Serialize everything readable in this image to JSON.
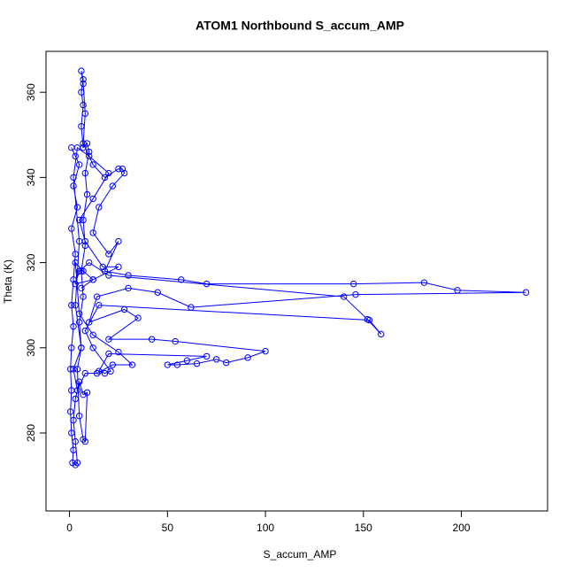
{
  "chart_data": {
    "type": "scatter",
    "title": "ATOM1 Northbound S_accum_AMP",
    "x_label": "S_accum_AMP",
    "y_label": "Theta (K)",
    "color": "#0000ff",
    "lines": true,
    "xlim": [
      -12,
      244
    ],
    "ylim": [
      261.7,
      369.6
    ],
    "xticks": [
      0,
      50,
      100,
      150,
      200
    ],
    "yticks": [
      280,
      300,
      320,
      340,
      360
    ],
    "x": [
      1,
      3,
      5,
      2,
      4,
      1,
      3,
      2,
      1,
      2,
      1,
      0.5,
      1,
      0.5,
      1,
      2,
      1.5,
      3,
      4,
      3,
      2,
      3,
      5,
      7,
      9,
      8,
      7,
      5,
      4,
      6,
      5,
      7,
      6,
      8,
      7,
      9,
      8,
      10,
      9,
      7,
      6,
      7,
      6,
      7,
      6,
      7,
      8,
      7,
      12,
      18,
      25,
      27,
      28,
      22,
      15,
      12,
      20,
      25,
      18,
      30,
      57,
      70,
      145,
      181,
      198,
      233,
      146,
      62,
      45,
      30,
      14,
      10,
      28,
      35,
      20,
      42,
      54,
      100,
      91,
      80,
      75,
      65,
      55,
      50,
      60,
      70,
      20,
      15,
      18,
      21,
      12,
      8,
      15,
      153,
      159,
      152,
      140,
      20,
      10,
      5,
      3,
      12,
      25,
      17,
      8,
      5,
      12,
      20,
      10,
      4,
      2,
      5,
      3,
      6,
      2,
      4,
      8,
      14,
      22,
      32,
      25,
      12,
      5,
      3,
      7,
      12,
      6
    ],
    "y": [
      347,
      345,
      343,
      338,
      333,
      328,
      322,
      316,
      310,
      305,
      300,
      295,
      290,
      285,
      280,
      276,
      273,
      272.5,
      273,
      278,
      283,
      288,
      292,
      289,
      289.5,
      278,
      278.5,
      284,
      295,
      300,
      306,
      312,
      318,
      324,
      330,
      336,
      341,
      346,
      348,
      347,
      352,
      357,
      360,
      363,
      365,
      362,
      355,
      348,
      343,
      340,
      342,
      342,
      341,
      338,
      333,
      327,
      322,
      325,
      318,
      317,
      316,
      315,
      315,
      315.3,
      313.5,
      313,
      312.5,
      309.5,
      313,
      314,
      312,
      306,
      309,
      307,
      302,
      302,
      301.5,
      299.2,
      297.7,
      296.5,
      297.3,
      296.3,
      296,
      296,
      297,
      298,
      298.6,
      294.5,
      294,
      294.5,
      300,
      304,
      310,
      306.5,
      303.2,
      306.7,
      312,
      317,
      320,
      318,
      315,
      316,
      319,
      319,
      325,
      330,
      335,
      341,
      345,
      347,
      340,
      325,
      310,
      300,
      295,
      290,
      294,
      294,
      296,
      296,
      299,
      303,
      308,
      320,
      318,
      316,
      314
    ]
  }
}
